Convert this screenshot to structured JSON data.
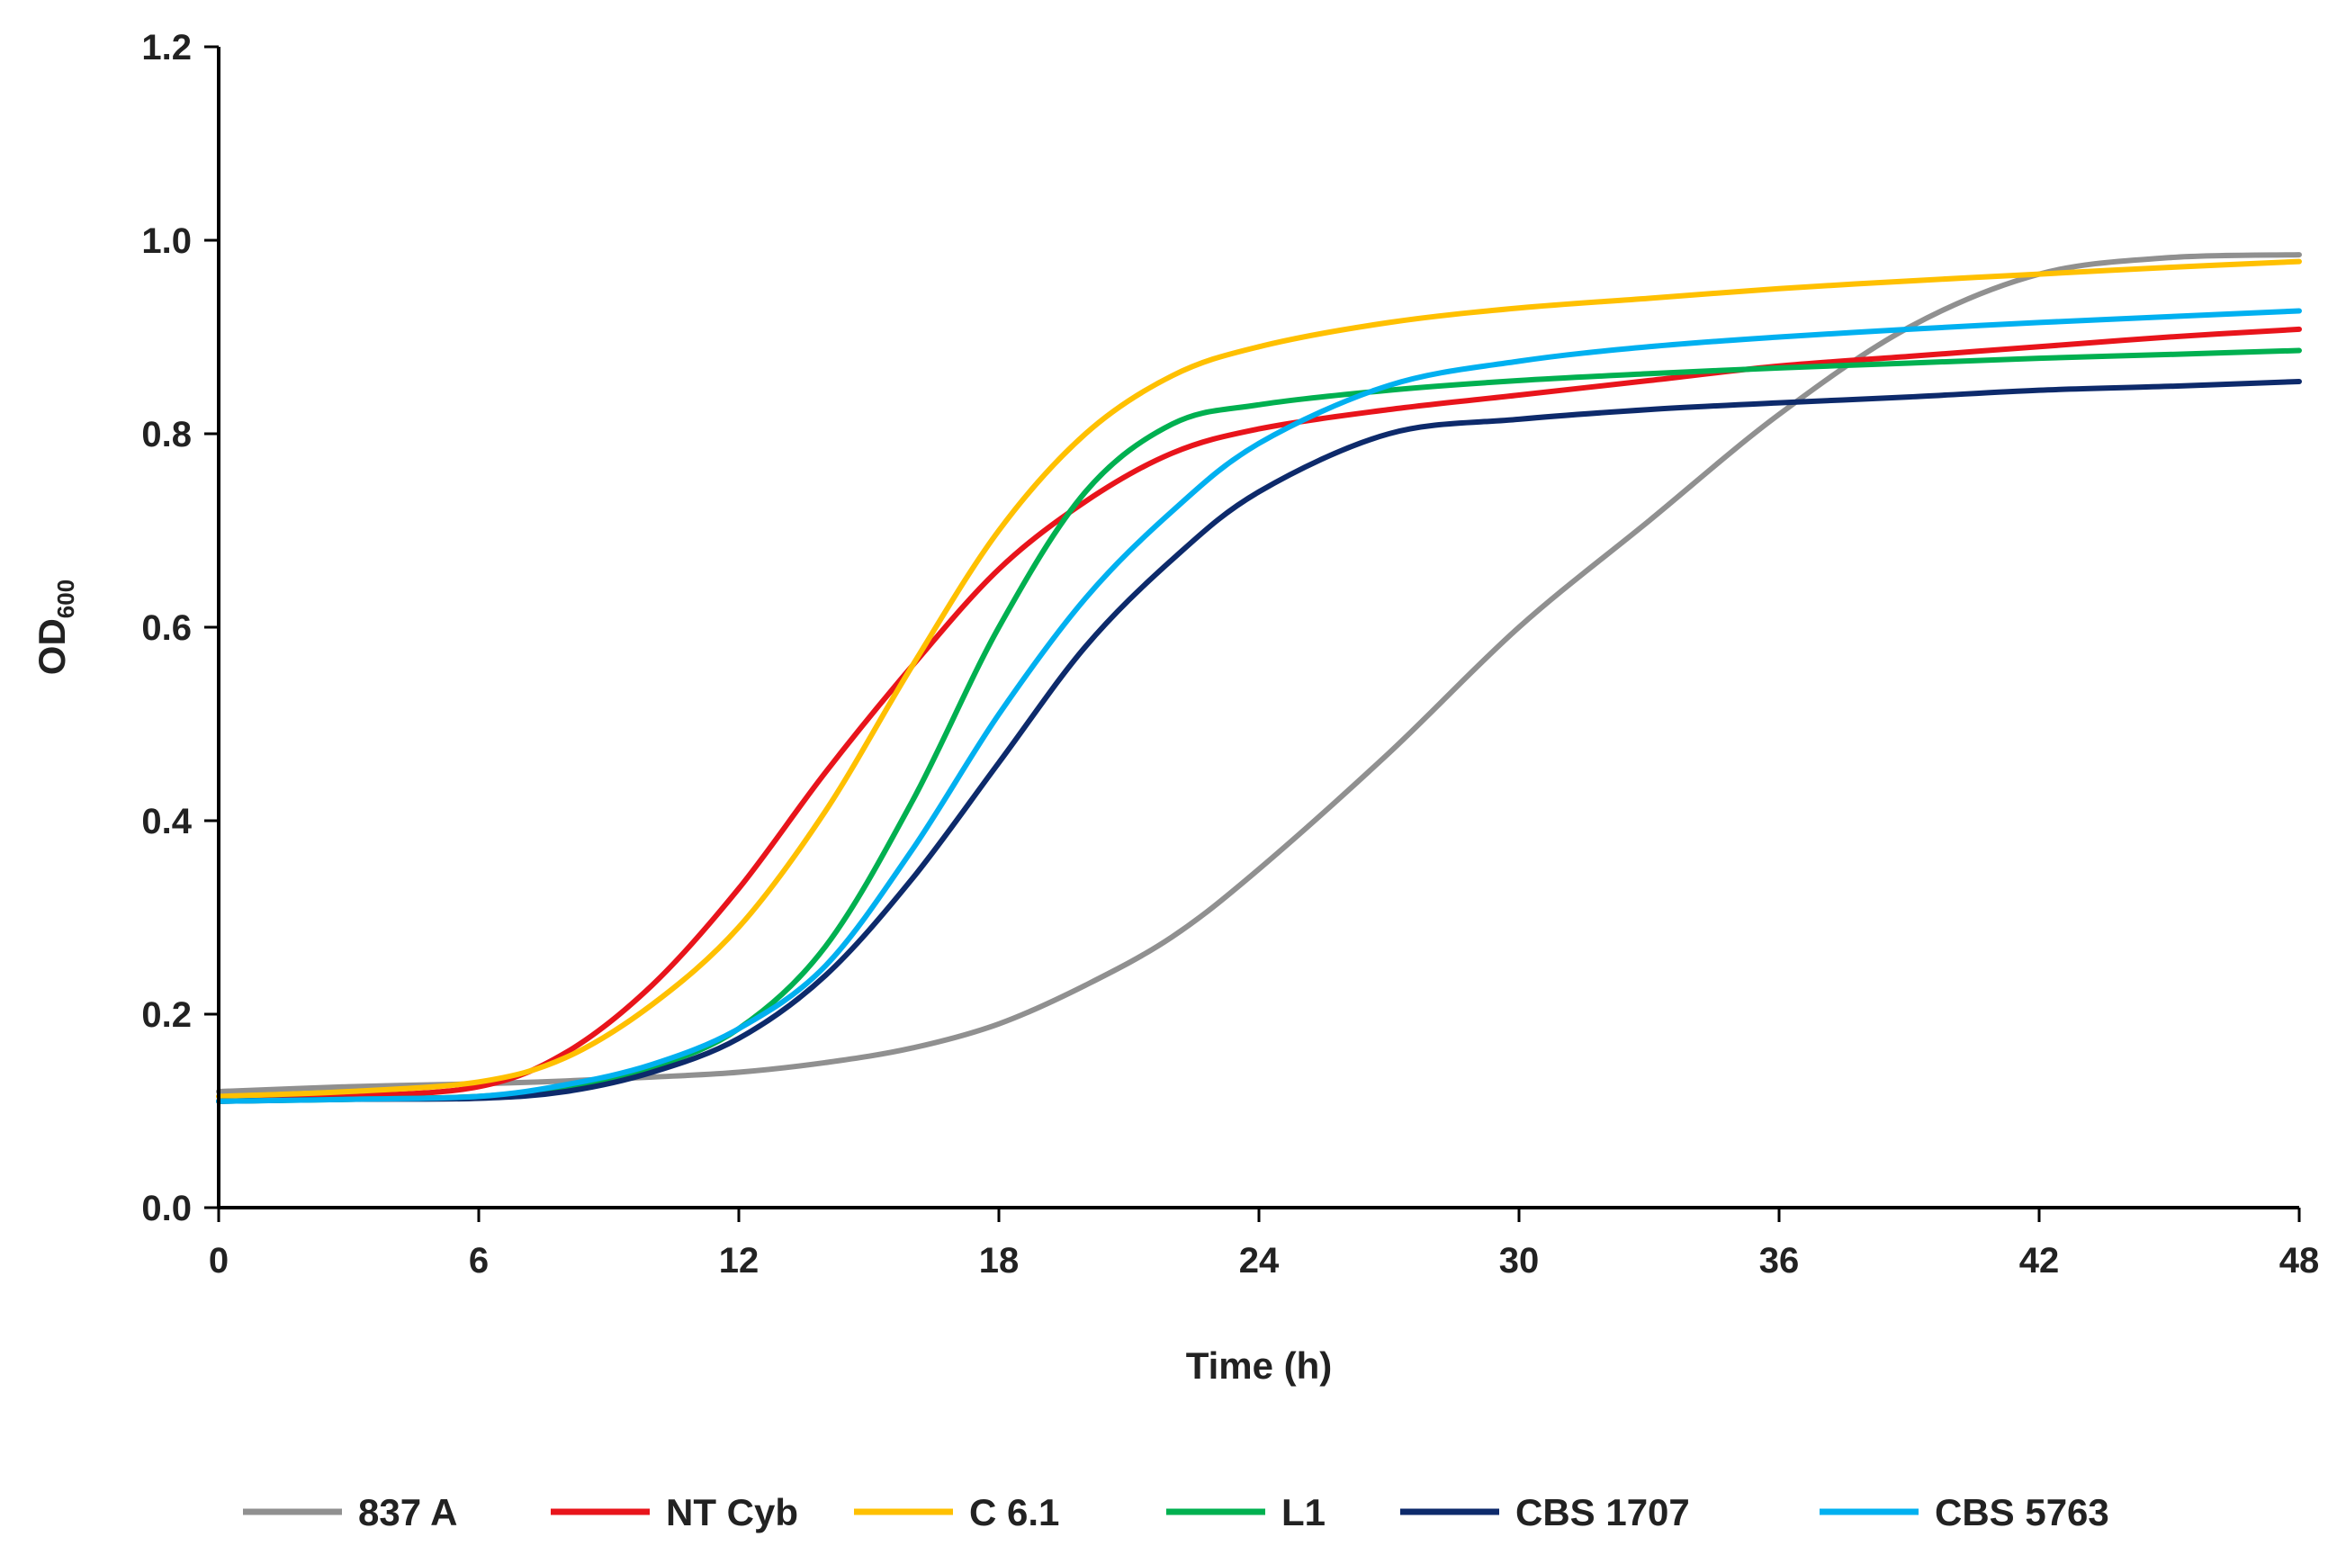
{
  "chart_data": {
    "type": "line",
    "title": "",
    "xlabel": "Time (h)",
    "ylabel": "OD",
    "ylabel_subscript": "600",
    "xlim": [
      0,
      48
    ],
    "ylim": [
      0,
      1.2
    ],
    "xticks": [
      "0",
      "6",
      "12",
      "18",
      "24",
      "30",
      "36",
      "42",
      "48"
    ],
    "yticks": [
      "0.0",
      "0.2",
      "0.4",
      "0.6",
      "0.8",
      "1.0",
      "1.2"
    ],
    "grid": false,
    "legend_position": "bottom",
    "x": [
      0,
      3,
      6,
      8,
      10,
      12,
      14,
      16,
      18,
      20,
      22,
      24,
      27,
      30,
      33,
      36,
      39,
      42,
      45,
      48
    ],
    "series": [
      {
        "name": "837 A",
        "color": "#909090",
        "values": [
          0.12,
          0.125,
          0.128,
          0.131,
          0.135,
          0.14,
          0.15,
          0.165,
          0.19,
          0.23,
          0.28,
          0.35,
          0.47,
          0.6,
          0.71,
          0.82,
          0.91,
          0.965,
          0.982,
          0.985
        ]
      },
      {
        "name": "NT Cyb",
        "color": "#e8141b",
        "values": [
          0.11,
          0.115,
          0.125,
          0.16,
          0.23,
          0.33,
          0.45,
          0.56,
          0.66,
          0.73,
          0.78,
          0.805,
          0.825,
          0.84,
          0.855,
          0.87,
          0.88,
          0.89,
          0.9,
          0.908
        ]
      },
      {
        "name": "C 6.1",
        "color": "#ffc000",
        "values": [
          0.115,
          0.12,
          0.13,
          0.155,
          0.21,
          0.29,
          0.41,
          0.56,
          0.7,
          0.8,
          0.86,
          0.89,
          0.915,
          0.93,
          0.94,
          0.95,
          0.958,
          0.965,
          0.972,
          0.978
        ]
      },
      {
        "name": "L1",
        "color": "#00b050",
        "values": [
          0.11,
          0.112,
          0.115,
          0.125,
          0.145,
          0.185,
          0.27,
          0.42,
          0.6,
          0.74,
          0.81,
          0.83,
          0.845,
          0.855,
          0.862,
          0.868,
          0.873,
          0.878,
          0.882,
          0.886
        ]
      },
      {
        "name": "CBS 1707",
        "color": "#0d2a6b",
        "values": [
          0.11,
          0.112,
          0.113,
          0.12,
          0.14,
          0.175,
          0.24,
          0.34,
          0.46,
          0.58,
          0.67,
          0.74,
          0.8,
          0.815,
          0.825,
          0.832,
          0.838,
          0.845,
          0.849,
          0.854
        ]
      },
      {
        "name": "CBS 5763",
        "color": "#00b0f0",
        "values": [
          0.11,
          0.112,
          0.115,
          0.127,
          0.148,
          0.185,
          0.25,
          0.37,
          0.51,
          0.63,
          0.72,
          0.79,
          0.85,
          0.875,
          0.89,
          0.9,
          0.908,
          0.915,
          0.921,
          0.927
        ]
      }
    ]
  }
}
